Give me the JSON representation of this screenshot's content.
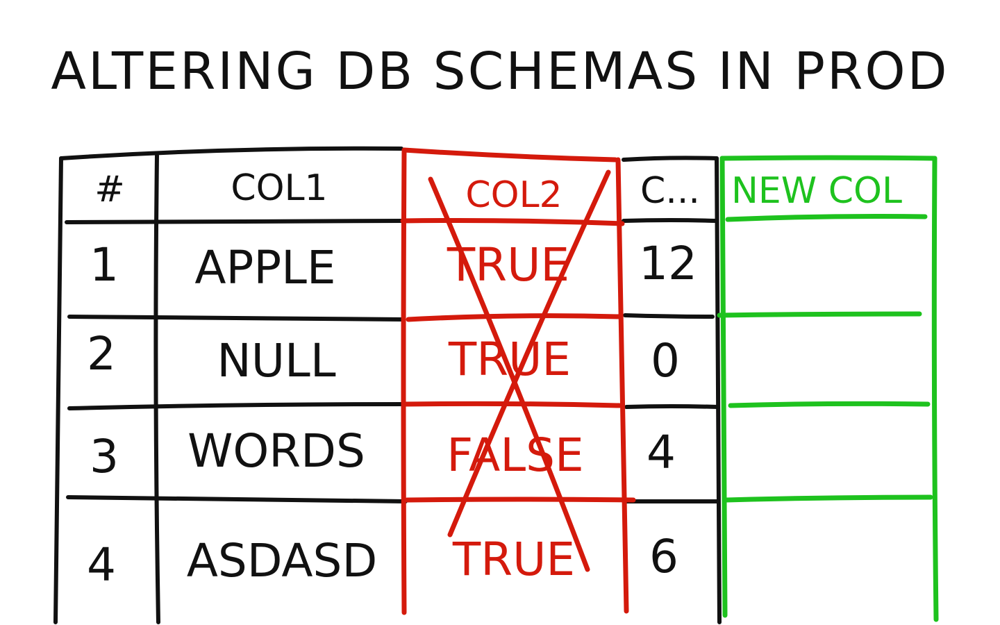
{
  "title": "ALTERING DB SCHEMAS IN PROD",
  "colors": {
    "ink": "#111111",
    "removed": "#d41a0c",
    "added": "#1ec21e",
    "background": "#ffffff"
  },
  "table": {
    "headers": {
      "index": "#",
      "col1": "COL1",
      "col2": "COL2",
      "col3": "C...",
      "new_col": "NEW COL"
    },
    "rows": [
      {
        "index": "1",
        "col1": "APPLE",
        "col2": "TRUE",
        "col3": "12",
        "new_col": ""
      },
      {
        "index": "2",
        "col1": "NULL",
        "col2": "TRUE",
        "col3": "0",
        "new_col": ""
      },
      {
        "index": "3",
        "col1": "WORDS",
        "col2": "FALSE",
        "col3": "4",
        "new_col": ""
      },
      {
        "index": "4",
        "col1": "ASDASD",
        "col2": "TRUE",
        "col3": "6",
        "new_col": ""
      }
    ],
    "removed_column": "col2",
    "added_column": "new_col"
  }
}
